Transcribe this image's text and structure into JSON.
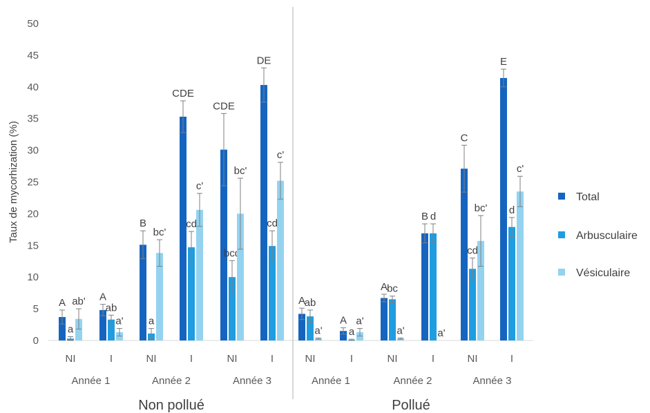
{
  "chart_data": {
    "type": "bar",
    "ylabel": "Taux de mycorhization (%)",
    "ylim": [
      0,
      50
    ],
    "yticks": [
      0,
      5,
      10,
      15,
      20,
      25,
      30,
      35,
      40,
      45,
      50
    ],
    "grid": false,
    "legend_position": "right",
    "colors": [
      "#1565c0",
      "#1f9de0",
      "#93d3f0"
    ],
    "errorbar_color": "#7f7f7f",
    "separator_color": "#bfbfbf",
    "categories": [
      "NI",
      "I",
      "NI",
      "I",
      "NI",
      "I",
      "NI",
      "I",
      "NI",
      "I",
      "NI",
      "I"
    ],
    "years": [
      "Année 1",
      "Année 2",
      "Année 3",
      "Année 1",
      "Année 2",
      "Année 3"
    ],
    "pollution": [
      "Non pollué",
      "Pollué"
    ],
    "series": [
      {
        "name": "Total",
        "values": [
          3.7,
          4.8,
          15.1,
          35.3,
          30.1,
          40.3,
          4.2,
          1.5,
          6.7,
          16.9,
          27.1,
          41.4
        ],
        "errors": [
          1.1,
          0.9,
          2.2,
          2.5,
          5.7,
          2.7,
          0.9,
          0.5,
          0.6,
          1.5,
          3.7,
          1.4
        ],
        "labels": [
          "A",
          "A",
          "B",
          "CDE",
          "CDE",
          "DE",
          "A",
          "A",
          "A",
          "B",
          "C",
          "E"
        ]
      },
      {
        "name": "Arbusculaire",
        "values": [
          0.3,
          3.3,
          1.1,
          14.7,
          10.0,
          14.9,
          3.8,
          0.1,
          6.5,
          16.9,
          11.3,
          17.9
        ],
        "errors": [
          0.3,
          0.7,
          0.8,
          2.5,
          2.6,
          2.4,
          1.0,
          0.1,
          0.5,
          1.5,
          1.7,
          1.5
        ],
        "labels": [
          "a",
          "ab",
          "a",
          "cd",
          "bcd",
          "cd",
          "ab",
          "a",
          "bc",
          "d",
          "cd",
          "d"
        ]
      },
      {
        "name": "Vésiculaire",
        "values": [
          3.4,
          1.3,
          13.8,
          20.6,
          20.0,
          25.2,
          0.3,
          1.3,
          0.3,
          0.0,
          15.7,
          23.5
        ],
        "errors": [
          1.6,
          0.6,
          2.1,
          2.6,
          5.6,
          2.9,
          0.1,
          0.6,
          0.1,
          0.0,
          4.0,
          2.4
        ],
        "labels": [
          "ab'",
          "a'",
          "bc'",
          "c'",
          "bc'",
          "c'",
          "a'",
          "a'",
          "a'",
          "a'",
          "bc'",
          "c'"
        ]
      }
    ]
  }
}
